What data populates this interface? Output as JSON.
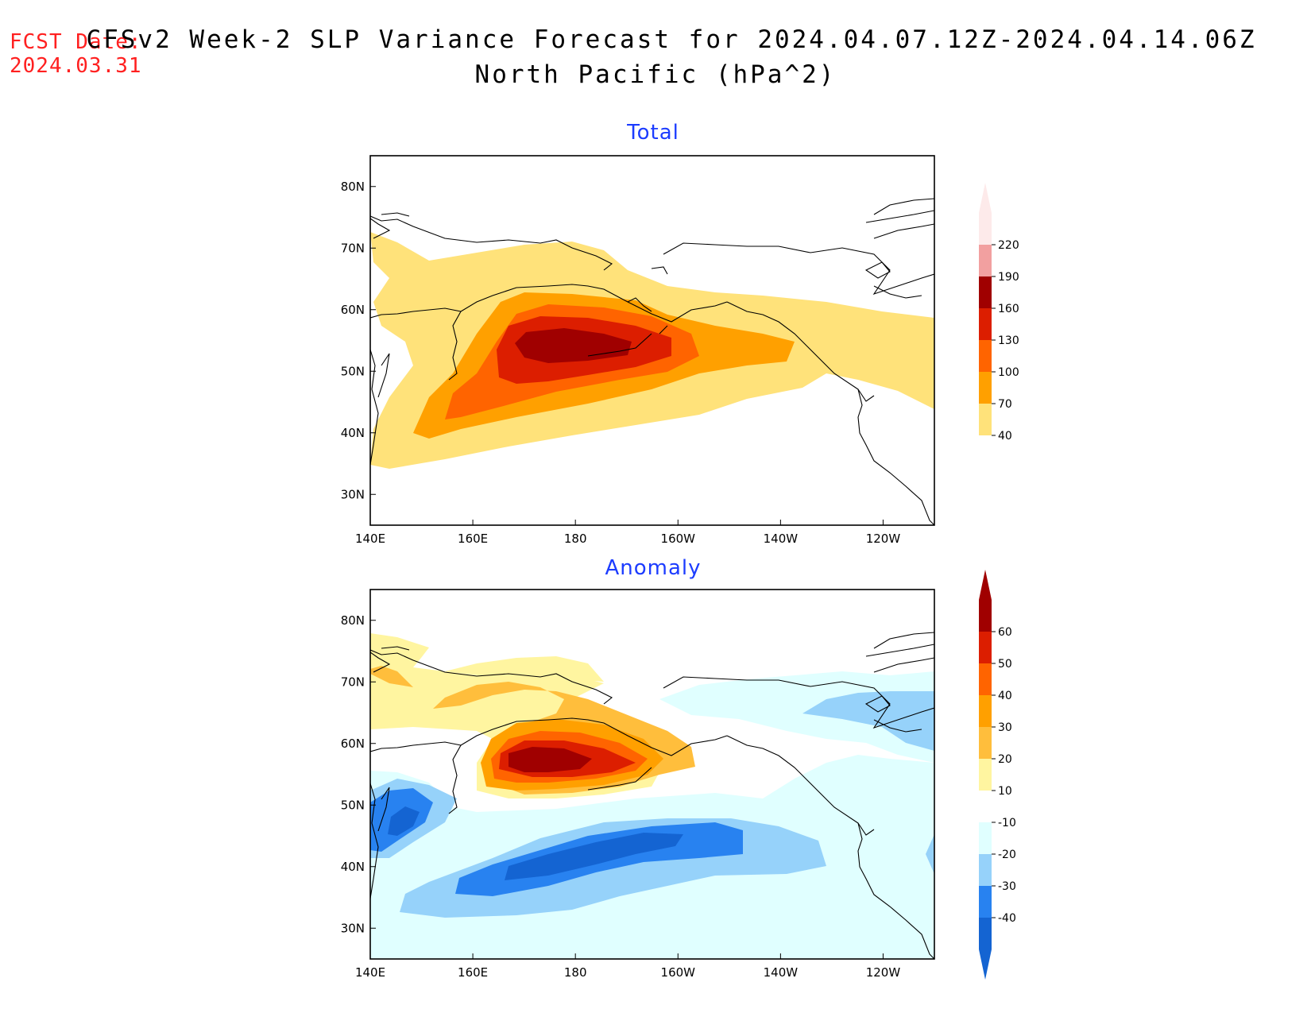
{
  "header": {
    "fcst_label": "FCST Date:",
    "fcst_date": "2024.03.31",
    "title_line1": "CFSv2 Week-2 SLP Variance Forecast for 2024.04.07.12Z-2024.04.14.06Z",
    "title_line2": "North Pacific (hPa^2)"
  },
  "axes": {
    "lon_ticks": [
      "140E",
      "160E",
      "180",
      "160W",
      "140W",
      "120W"
    ],
    "lat_ticks": [
      "80N",
      "70N",
      "60N",
      "50N",
      "40N",
      "30N"
    ],
    "lon_range": [
      140,
      250
    ],
    "lat_range": [
      25,
      85
    ]
  },
  "panels": [
    {
      "title": "Total",
      "colorbar": {
        "levels": [
          "220",
          "190",
          "160",
          "130",
          "100",
          "70",
          "40"
        ],
        "colors": [
          "#fdeaea",
          "#f2a0a0",
          "#a00000",
          "#dc1e00",
          "#ff6400",
          "#ffa000",
          "#ffe27a"
        ]
      }
    },
    {
      "title": "Anomaly",
      "colorbar": {
        "levels": [
          "60",
          "50",
          "40",
          "30",
          "20",
          "10",
          "-10",
          "-20",
          "-30",
          "-40"
        ],
        "colors": [
          "#a00000",
          "#dc1e00",
          "#ff6400",
          "#ffa000",
          "#ffbe3c",
          "#fff5a0",
          "#ffffff",
          "#e0ffff",
          "#96d2fa",
          "#2882f0",
          "#1464d2"
        ]
      }
    }
  ]
}
